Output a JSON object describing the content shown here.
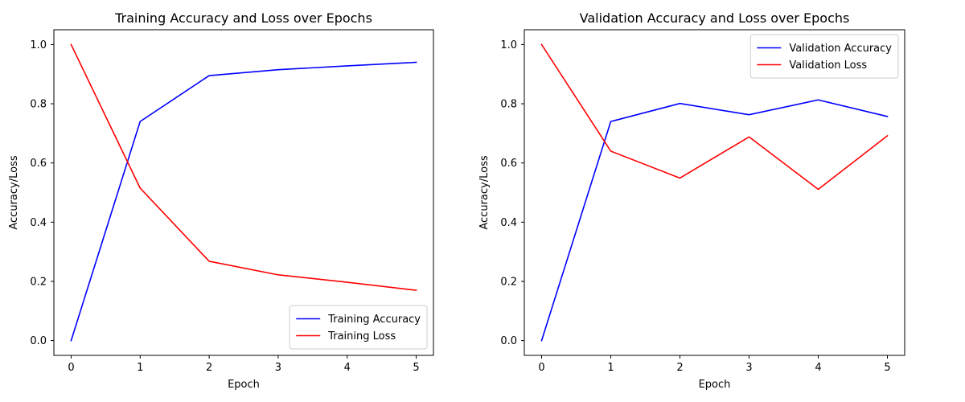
{
  "chart_data": [
    {
      "type": "line",
      "title": "Training Accuracy and Loss over Epochs",
      "xlabel": "Epoch",
      "ylabel": "Accuracy/Loss",
      "x": [
        0,
        1,
        2,
        3,
        4,
        5
      ],
      "xlim": [
        -0.25,
        5.25
      ],
      "ylim": [
        -0.05,
        1.05
      ],
      "xticks": [
        "0",
        "1",
        "2",
        "3",
        "4",
        "5"
      ],
      "yticks": [
        "0.0",
        "0.2",
        "0.4",
        "0.6",
        "0.8",
        "1.0"
      ],
      "grid": false,
      "legend_position": "lower right",
      "series": [
        {
          "name": "Training Accuracy",
          "color": "#0000ff",
          "values": [
            0.0,
            0.74,
            0.895,
            0.915,
            0.928,
            0.94
          ]
        },
        {
          "name": "Training Loss",
          "color": "#ff0000",
          "values": [
            1.0,
            0.515,
            0.268,
            0.222,
            0.197,
            0.17
          ]
        }
      ]
    },
    {
      "type": "line",
      "title": "Validation Accuracy and Loss over Epochs",
      "xlabel": "Epoch",
      "ylabel": "Accuracy/Loss",
      "x": [
        0,
        1,
        2,
        3,
        4,
        5
      ],
      "xlim": [
        -0.25,
        5.25
      ],
      "ylim": [
        -0.05,
        1.05
      ],
      "xticks": [
        "0",
        "1",
        "2",
        "3",
        "4",
        "5"
      ],
      "yticks": [
        "0.0",
        "0.2",
        "0.4",
        "0.6",
        "0.8",
        "1.0"
      ],
      "grid": false,
      "legend_position": "upper right",
      "series": [
        {
          "name": "Validation Accuracy",
          "color": "#0000ff",
          "values": [
            0.0,
            0.74,
            0.801,
            0.763,
            0.813,
            0.757
          ]
        },
        {
          "name": "Validation Loss",
          "color": "#ff0000",
          "values": [
            1.0,
            0.64,
            0.549,
            0.688,
            0.511,
            0.692
          ]
        }
      ]
    }
  ]
}
